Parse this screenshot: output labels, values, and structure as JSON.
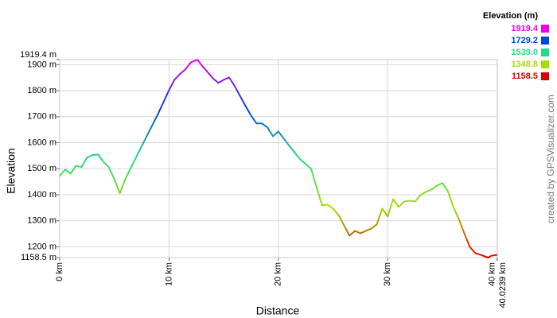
{
  "chart_data": {
    "type": "line",
    "y_label": "Elevation",
    "x_label": "Distance",
    "credit": "created by GPSVisualizer.com",
    "legend_title": "Elevation (m)",
    "legend": [
      {
        "value": 1919.4,
        "label": "1919.4",
        "color": "#ee00ee"
      },
      {
        "value": 1729.2,
        "label": "1729.2",
        "color": "#0044dd"
      },
      {
        "value": 1539,
        "label": "1539.0",
        "color": "#22dd88"
      },
      {
        "value": 1348.8,
        "label": "1348.8",
        "color": "#aadd00"
      },
      {
        "value": 1158.5,
        "label": "1158.5",
        "color": "#dd0000"
      }
    ],
    "x": [
      0,
      0.5,
      1,
      1.5,
      2,
      2.5,
      3,
      3.5,
      4,
      4.5,
      5,
      5.5,
      6,
      7,
      8,
      9,
      10,
      10.5,
      11,
      11.5,
      12,
      12.6,
      13,
      13.5,
      14,
      14.5,
      15,
      15.5,
      16,
      17,
      17.5,
      18,
      18.5,
      19,
      19.5,
      20,
      21,
      22,
      23,
      23.5,
      24,
      24.5,
      25,
      25.5,
      26,
      26.5,
      27,
      27.5,
      28,
      28.5,
      29,
      29.5,
      30,
      30.5,
      31,
      31.5,
      32,
      32.5,
      33,
      33.5,
      34,
      34.5,
      35,
      35.5,
      36,
      36.5,
      37,
      37.5,
      38,
      38.5,
      39.2,
      39.5,
      40.0239
    ],
    "series": [
      {
        "name": "Elevation",
        "values": [
          1472,
          1497,
          1481,
          1512,
          1506,
          1543,
          1552,
          1555,
          1527,
          1506,
          1460,
          1405,
          1460,
          1545,
          1628,
          1711,
          1802,
          1842,
          1864,
          1882,
          1909,
          1919.4,
          1897,
          1873,
          1848,
          1830,
          1842,
          1851,
          1818,
          1741,
          1705,
          1674,
          1674,
          1659,
          1625,
          1643,
          1588,
          1536,
          1500,
          1429,
          1359,
          1362,
          1347,
          1322,
          1283,
          1243,
          1261,
          1252,
          1261,
          1270,
          1286,
          1347,
          1316,
          1383,
          1353,
          1374,
          1377,
          1374,
          1399,
          1411,
          1420,
          1435,
          1445,
          1414,
          1353,
          1307,
          1252,
          1200,
          1176,
          1169,
          1158.5,
          1166,
          1169
        ]
      }
    ],
    "xlim": [
      0,
      40.0239
    ],
    "xticks": [
      {
        "value": 0,
        "label": "0 km"
      },
      {
        "value": 10,
        "label": "10 km"
      },
      {
        "value": 20,
        "label": "20 km"
      },
      {
        "value": 30,
        "label": "30 km"
      },
      {
        "value": 40,
        "label": "40 km"
      },
      {
        "value": 40.0239,
        "label": "40.0239 km"
      }
    ],
    "ylim": [
      1158.5,
      1919.4
    ],
    "yticks": [
      {
        "value": 1158.5,
        "label": "1158.5 m"
      },
      {
        "value": 1200,
        "label": "1200 m"
      },
      {
        "value": 1300,
        "label": "1300 m"
      },
      {
        "value": 1400,
        "label": "1400 m"
      },
      {
        "value": 1500,
        "label": "1500 m"
      },
      {
        "value": 1600,
        "label": "1600 m"
      },
      {
        "value": 1700,
        "label": "1700 m"
      },
      {
        "value": 1800,
        "label": "1800 m"
      },
      {
        "value": 1900,
        "label": "1900 m"
      },
      {
        "value": 1919.4,
        "label": "1919.4 m"
      }
    ],
    "grid": true
  }
}
